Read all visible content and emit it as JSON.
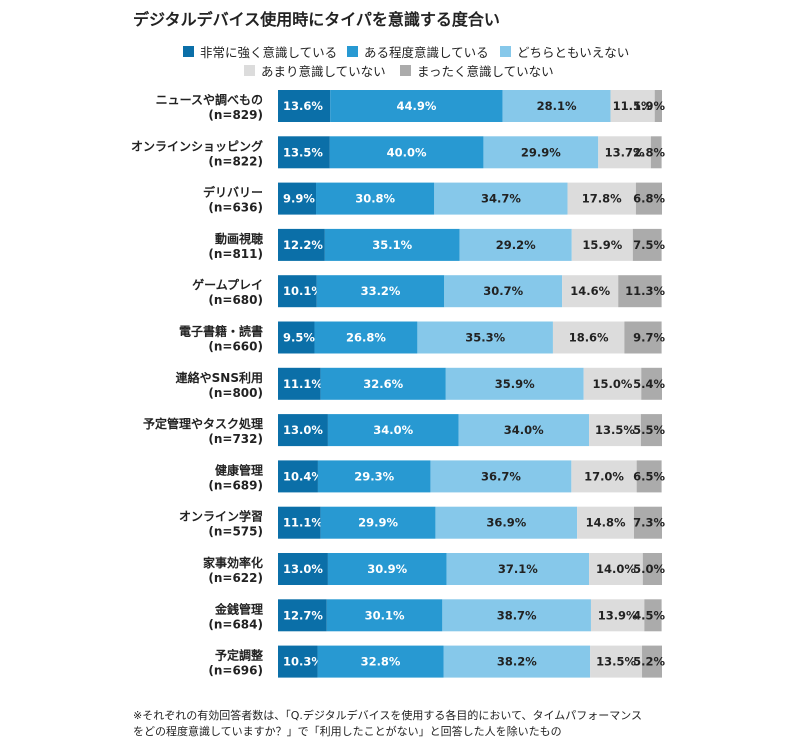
{
  "chart_data": {
    "type": "bar",
    "orientation": "horizontal",
    "stacked": "100%",
    "title": "デジタルデバイス使用時にタイパを意識する度合い",
    "legend_position": "top",
    "unit": "%",
    "categories": [
      {
        "name": "ニュースや調べもの",
        "n": "(n=829)"
      },
      {
        "name": "オンラインショッピング",
        "n": "(n=822)"
      },
      {
        "name": "デリバリー",
        "n": "(n=636)"
      },
      {
        "name": "動画視聴",
        "n": "(n=811)"
      },
      {
        "name": "ゲームプレイ",
        "n": "(n=680)"
      },
      {
        "name": "電子書籍・読書",
        "n": "(n=660)"
      },
      {
        "name": "連絡やSNS利用",
        "n": "(n=800)"
      },
      {
        "name": "予定管理やタスク処理",
        "n": "(n=732)"
      },
      {
        "name": "健康管理",
        "n": "(n=689)"
      },
      {
        "name": "オンライン学習",
        "n": "(n=575)"
      },
      {
        "name": "家事効率化",
        "n": "(n=622)"
      },
      {
        "name": "金銭管理",
        "n": "(n=684)"
      },
      {
        "name": "予定調整",
        "n": "(n=696)"
      }
    ],
    "series": [
      {
        "name": "非常に強く意識している",
        "color": "#0b6fa8",
        "text_color": "#ffffff",
        "values": [
          13.6,
          13.5,
          9.9,
          12.2,
          10.1,
          9.5,
          11.1,
          13.0,
          10.4,
          11.1,
          13.0,
          12.7,
          10.3
        ]
      },
      {
        "name": "ある程度意識している",
        "color": "#2899d2",
        "text_color": "#ffffff",
        "values": [
          44.9,
          40.0,
          30.8,
          35.1,
          33.2,
          26.8,
          32.6,
          34.0,
          29.3,
          29.9,
          30.9,
          30.1,
          32.8
        ]
      },
      {
        "name": "どちらともいえない",
        "color": "#86c8ea",
        "text_color": "#222222",
        "values": [
          28.1,
          29.9,
          34.7,
          29.2,
          30.7,
          35.3,
          35.9,
          34.0,
          36.7,
          36.9,
          37.1,
          38.7,
          38.2
        ]
      },
      {
        "name": "あまり意識していない",
        "color": "#dcdcdc",
        "text_color": "#222222",
        "values": [
          11.5,
          13.7,
          17.8,
          15.9,
          14.6,
          18.6,
          15.0,
          13.5,
          17.0,
          14.8,
          14.0,
          13.9,
          13.5
        ]
      },
      {
        "name": "まったく意識していない",
        "color": "#ababab",
        "text_color": "#222222",
        "values": [
          1.9,
          2.8,
          6.8,
          7.5,
          11.3,
          9.7,
          5.4,
          5.5,
          6.5,
          7.3,
          5.0,
          4.5,
          5.2
        ]
      }
    ]
  },
  "footnote": {
    "line1": "※それぞれの有効回答者数は、「Q.デジタルデバイスを使用する各目的において、タイムパフォーマンス",
    "line2": "をどの程度意識していますか？」で「利用したことがない」と回答した人を除いたもの"
  }
}
